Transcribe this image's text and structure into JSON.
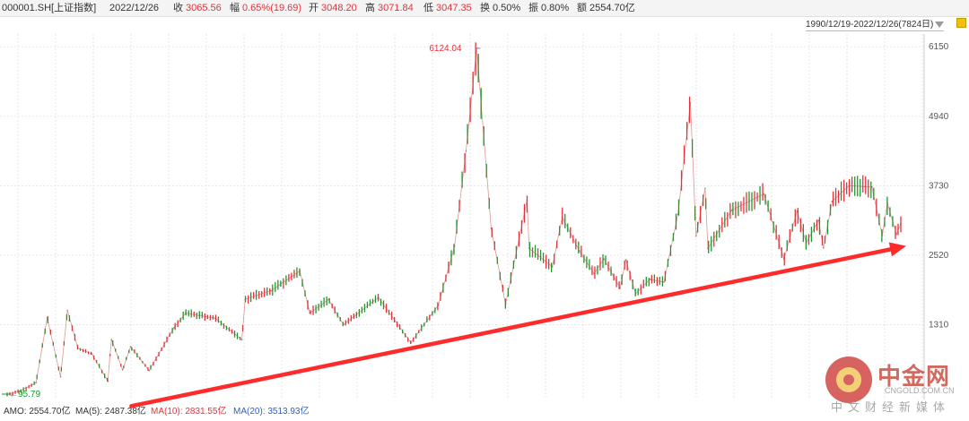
{
  "header": {
    "code": "000001.SH[上证指数]",
    "date": "2022/12/26",
    "close_label": "收",
    "close_value": "3065.56",
    "range_label": "幅",
    "range_value": "0.65%(19.69)",
    "open_label": "开",
    "open_value": "3048.20",
    "high_label": "高",
    "high_value": "3071.84",
    "low_label": "低",
    "low_value": "3047.35",
    "turnover_label": "换",
    "turnover_value": "0.50%",
    "amplitude_label": "振",
    "amplitude_value": "0.80%",
    "amount_label": "额",
    "amount_value": "2554.70亿"
  },
  "range_selector": {
    "label": "1990/12/19-2022/12/26(7824日)"
  },
  "footer": {
    "amo": "AMO: 2554.70亿",
    "ma5": "MA(5): 2487.38亿",
    "ma10": "MA(10): 2831.55亿",
    "ma20": "MA(20): 3513.93亿"
  },
  "watermark": {
    "brand": "中金网",
    "domain": "CNGOLD.COM.CN",
    "media": "中文财经新媒体"
  },
  "colors": {
    "up": "#e8313a",
    "down": "#1a9a30",
    "trend_arrow": "#ff2a2a",
    "ma10": "#e8313a",
    "ma20": "#2f5ec4"
  },
  "chart_data": {
    "type": "line",
    "title": "",
    "xlabel": "",
    "ylabel": "",
    "x_range": [
      "1990/12/19",
      "2022/12/26"
    ],
    "y_ticks": [
      1310,
      2520,
      3730,
      4940,
      6150
    ],
    "y_tick_labels": [
      "1310",
      "2520",
      "3730",
      "4940",
      "6150"
    ],
    "ylim": [
      100,
      6200
    ],
    "grid": true,
    "annotations": [
      {
        "label": "6124.04",
        "date": "2007/10/16",
        "value": 6124.04
      },
      {
        "label": "95.79",
        "date": "1990/12/19",
        "value": 95.79
      }
    ],
    "trend_line": {
      "start": {
        "date": "1995/06/01",
        "value": 80
      },
      "end": {
        "date": "2022/12/26",
        "value": 2680
      }
    },
    "series": [
      {
        "values": [
          [
            "1990/12/19",
            96
          ],
          [
            "1991/06/01",
            150
          ],
          [
            "1992/01/01",
            300
          ],
          [
            "1992/05/26",
            1429
          ],
          [
            "1992/11/17",
            400
          ],
          [
            "1993/02/15",
            1558
          ],
          [
            "1993/07/01",
            900
          ],
          [
            "1994/01/01",
            800
          ],
          [
            "1994/07/29",
            325
          ],
          [
            "1994/09/13",
            1052
          ],
          [
            "1995/02/07",
            524
          ],
          [
            "1995/05/22",
            926
          ],
          [
            "1996/01/19",
            512
          ],
          [
            "1996/12/11",
            1258
          ],
          [
            "1997/05/12",
            1510
          ],
          [
            "1998/06/04",
            1422
          ],
          [
            "1999/05/17",
            1047
          ],
          [
            "1999/06/30",
            1756
          ],
          [
            "2000/06/01",
            1900
          ],
          [
            "2001/06/14",
            2245
          ],
          [
            "2001/10/22",
            1514
          ],
          [
            "2002/06/25",
            1748
          ],
          [
            "2003/01/06",
            1311
          ],
          [
            "2004/04/07",
            1783
          ],
          [
            "2005/06/06",
            998
          ],
          [
            "2006/06/01",
            1650
          ],
          [
            "2006/12/29",
            2675
          ],
          [
            "2007/05/29",
            4335
          ],
          [
            "2007/10/16",
            6124
          ],
          [
            "2008/04/22",
            2990
          ],
          [
            "2008/10/28",
            1664
          ],
          [
            "2009/08/04",
            3478
          ],
          [
            "2009/09/01",
            2639
          ],
          [
            "2010/07/02",
            2319
          ],
          [
            "2010/11/08",
            3186
          ],
          [
            "2011/06/20",
            2597
          ],
          [
            "2011/12/30",
            2199
          ],
          [
            "2012/05/07",
            2453
          ],
          [
            "2012/12/04",
            1949
          ],
          [
            "2013/02/18",
            2444
          ],
          [
            "2013/06/25",
            1849
          ],
          [
            "2014/01/01",
            2100
          ],
          [
            "2014/07/01",
            2050
          ],
          [
            "2014/12/31",
            3234
          ],
          [
            "2015/06/12",
            5178
          ],
          [
            "2015/08/26",
            2850
          ],
          [
            "2015/12/22",
            3684
          ],
          [
            "2016/01/27",
            2638
          ],
          [
            "2016/12/01",
            3301
          ],
          [
            "2018/01/29",
            3587
          ],
          [
            "2018/10/19",
            2449
          ],
          [
            "2019/04/08",
            3288
          ],
          [
            "2019/08/06",
            2733
          ],
          [
            "2020/01/14",
            3127
          ],
          [
            "2020/03/19",
            2646
          ],
          [
            "2020/07/09",
            3458
          ],
          [
            "2021/02/18",
            3731
          ],
          [
            "2021/09/13",
            3715
          ],
          [
            "2021/12/13",
            3708
          ],
          [
            "2022/04/27",
            2863
          ],
          [
            "2022/07/04",
            3424
          ],
          [
            "2022/10/31",
            2885
          ],
          [
            "2022/12/26",
            3066
          ]
        ]
      }
    ]
  }
}
